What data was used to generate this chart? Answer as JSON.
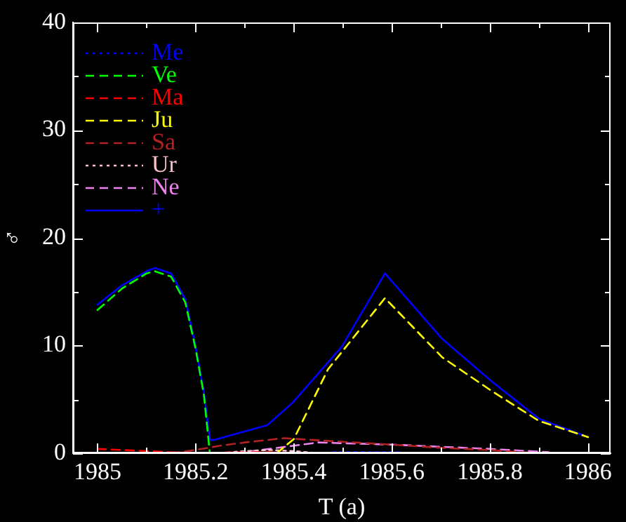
{
  "chart_data": {
    "type": "line",
    "xlabel": "T (a)",
    "ylabel": "♂",
    "xlim": [
      1984.95,
      1986.046
    ],
    "xticks": [
      1985,
      {
        "value": 1985.1,
        "label": null
      },
      1985.2,
      {
        "value": 1985.3,
        "label": null
      },
      1985.4,
      {
        "value": 1985.5,
        "label": null
      },
      1985.6,
      {
        "value": 1985.7,
        "label": null
      },
      1985.8,
      {
        "value": 1985.9,
        "label": null
      },
      1986
    ],
    "ylim": [
      0,
      40
    ],
    "yticks": [
      0,
      {
        "value": 5,
        "label": null
      },
      10,
      {
        "value": 15,
        "label": null
      },
      20,
      {
        "value": 25,
        "label": null
      },
      30,
      {
        "value": 35,
        "label": null
      },
      40
    ],
    "grid": false,
    "legend": "top left",
    "marker": "none",
    "series": [
      {
        "name": "Me",
        "color": "#0000ff",
        "line_style": "dotted",
        "x": [
          1985.48,
          1985.55,
          1985.62
        ],
        "values": [
          0.1,
          0.1,
          0.1
        ]
      },
      {
        "name": "Ve",
        "color": "#00ff00",
        "line_style": "dashed",
        "x": [
          1985,
          1985.05,
          1985.1,
          1985.117,
          1985.15,
          1985.179,
          1985.2,
          1985.217,
          1985.229
        ],
        "values": [
          13.3,
          15.3,
          16.7,
          16.9,
          16.4,
          14.0,
          9.7,
          5.4,
          0
        ]
      },
      {
        "name": "Ma",
        "color": "#ff0000",
        "line_style": "dashed",
        "x": [
          1985,
          1985.05,
          1985.1,
          1985.15,
          1985.2,
          1985.3,
          1985.35,
          1985.4
        ],
        "values": [
          0.4,
          0.3,
          0.2,
          0.1,
          0,
          0.1,
          0.1,
          0
        ]
      },
      {
        "name": "Ju",
        "color": "#ffff00",
        "line_style": "dashed",
        "x": [
          1985.365,
          1985.4,
          1985.47,
          1985.586,
          1985.703,
          1985.803,
          1985.9,
          1986
        ],
        "values": [
          0,
          1.3,
          7.8,
          14.4,
          8.9,
          5.8,
          3.0,
          1.5
        ]
      },
      {
        "name": "Sa",
        "color": "#b22222",
        "line_style": "dashed",
        "x": [
          1985.15,
          1985.2,
          1985.25,
          1985.3,
          1985.38,
          1985.45,
          1985.6,
          1985.7,
          1985.8,
          1985.9
        ],
        "values": [
          0,
          0.3,
          0.7,
          1.0,
          1.4,
          1.2,
          0.8,
          0.5,
          0.3,
          0
        ]
      },
      {
        "name": "Ur",
        "color": "#ffc0cb",
        "line_style": "dotted",
        "x": [
          1985.25,
          1985.3,
          1985.35,
          1985.4,
          1985.45
        ],
        "values": [
          0,
          0.2,
          0.3,
          0.2,
          0
        ]
      },
      {
        "name": "Ne",
        "color": "#ee82ee",
        "line_style": "dashed",
        "x": [
          1985.28,
          1985.35,
          1985.45,
          1985.6,
          1985.7,
          1985.8,
          1985.92
        ],
        "values": [
          0,
          0.4,
          1.0,
          0.8,
          0.6,
          0.4,
          0.1
        ]
      },
      {
        "name": "+",
        "color": "#0000ff",
        "line_style": "solid",
        "x": [
          1985,
          1985.05,
          1985.1,
          1985.117,
          1985.15,
          1985.179,
          1985.2,
          1985.217,
          1985.229,
          1985.235,
          1985.346,
          1985.398,
          1985.498,
          1985.586,
          1985.703,
          1985.803,
          1985.9,
          1986
        ],
        "values": [
          13.8,
          15.6,
          16.9,
          17.2,
          16.7,
          14.3,
          9.9,
          5.6,
          1.3,
          1.2,
          2.6,
          4.7,
          9.9,
          16.7,
          10.6,
          6.7,
          3.2,
          1.5
        ]
      }
    ]
  }
}
